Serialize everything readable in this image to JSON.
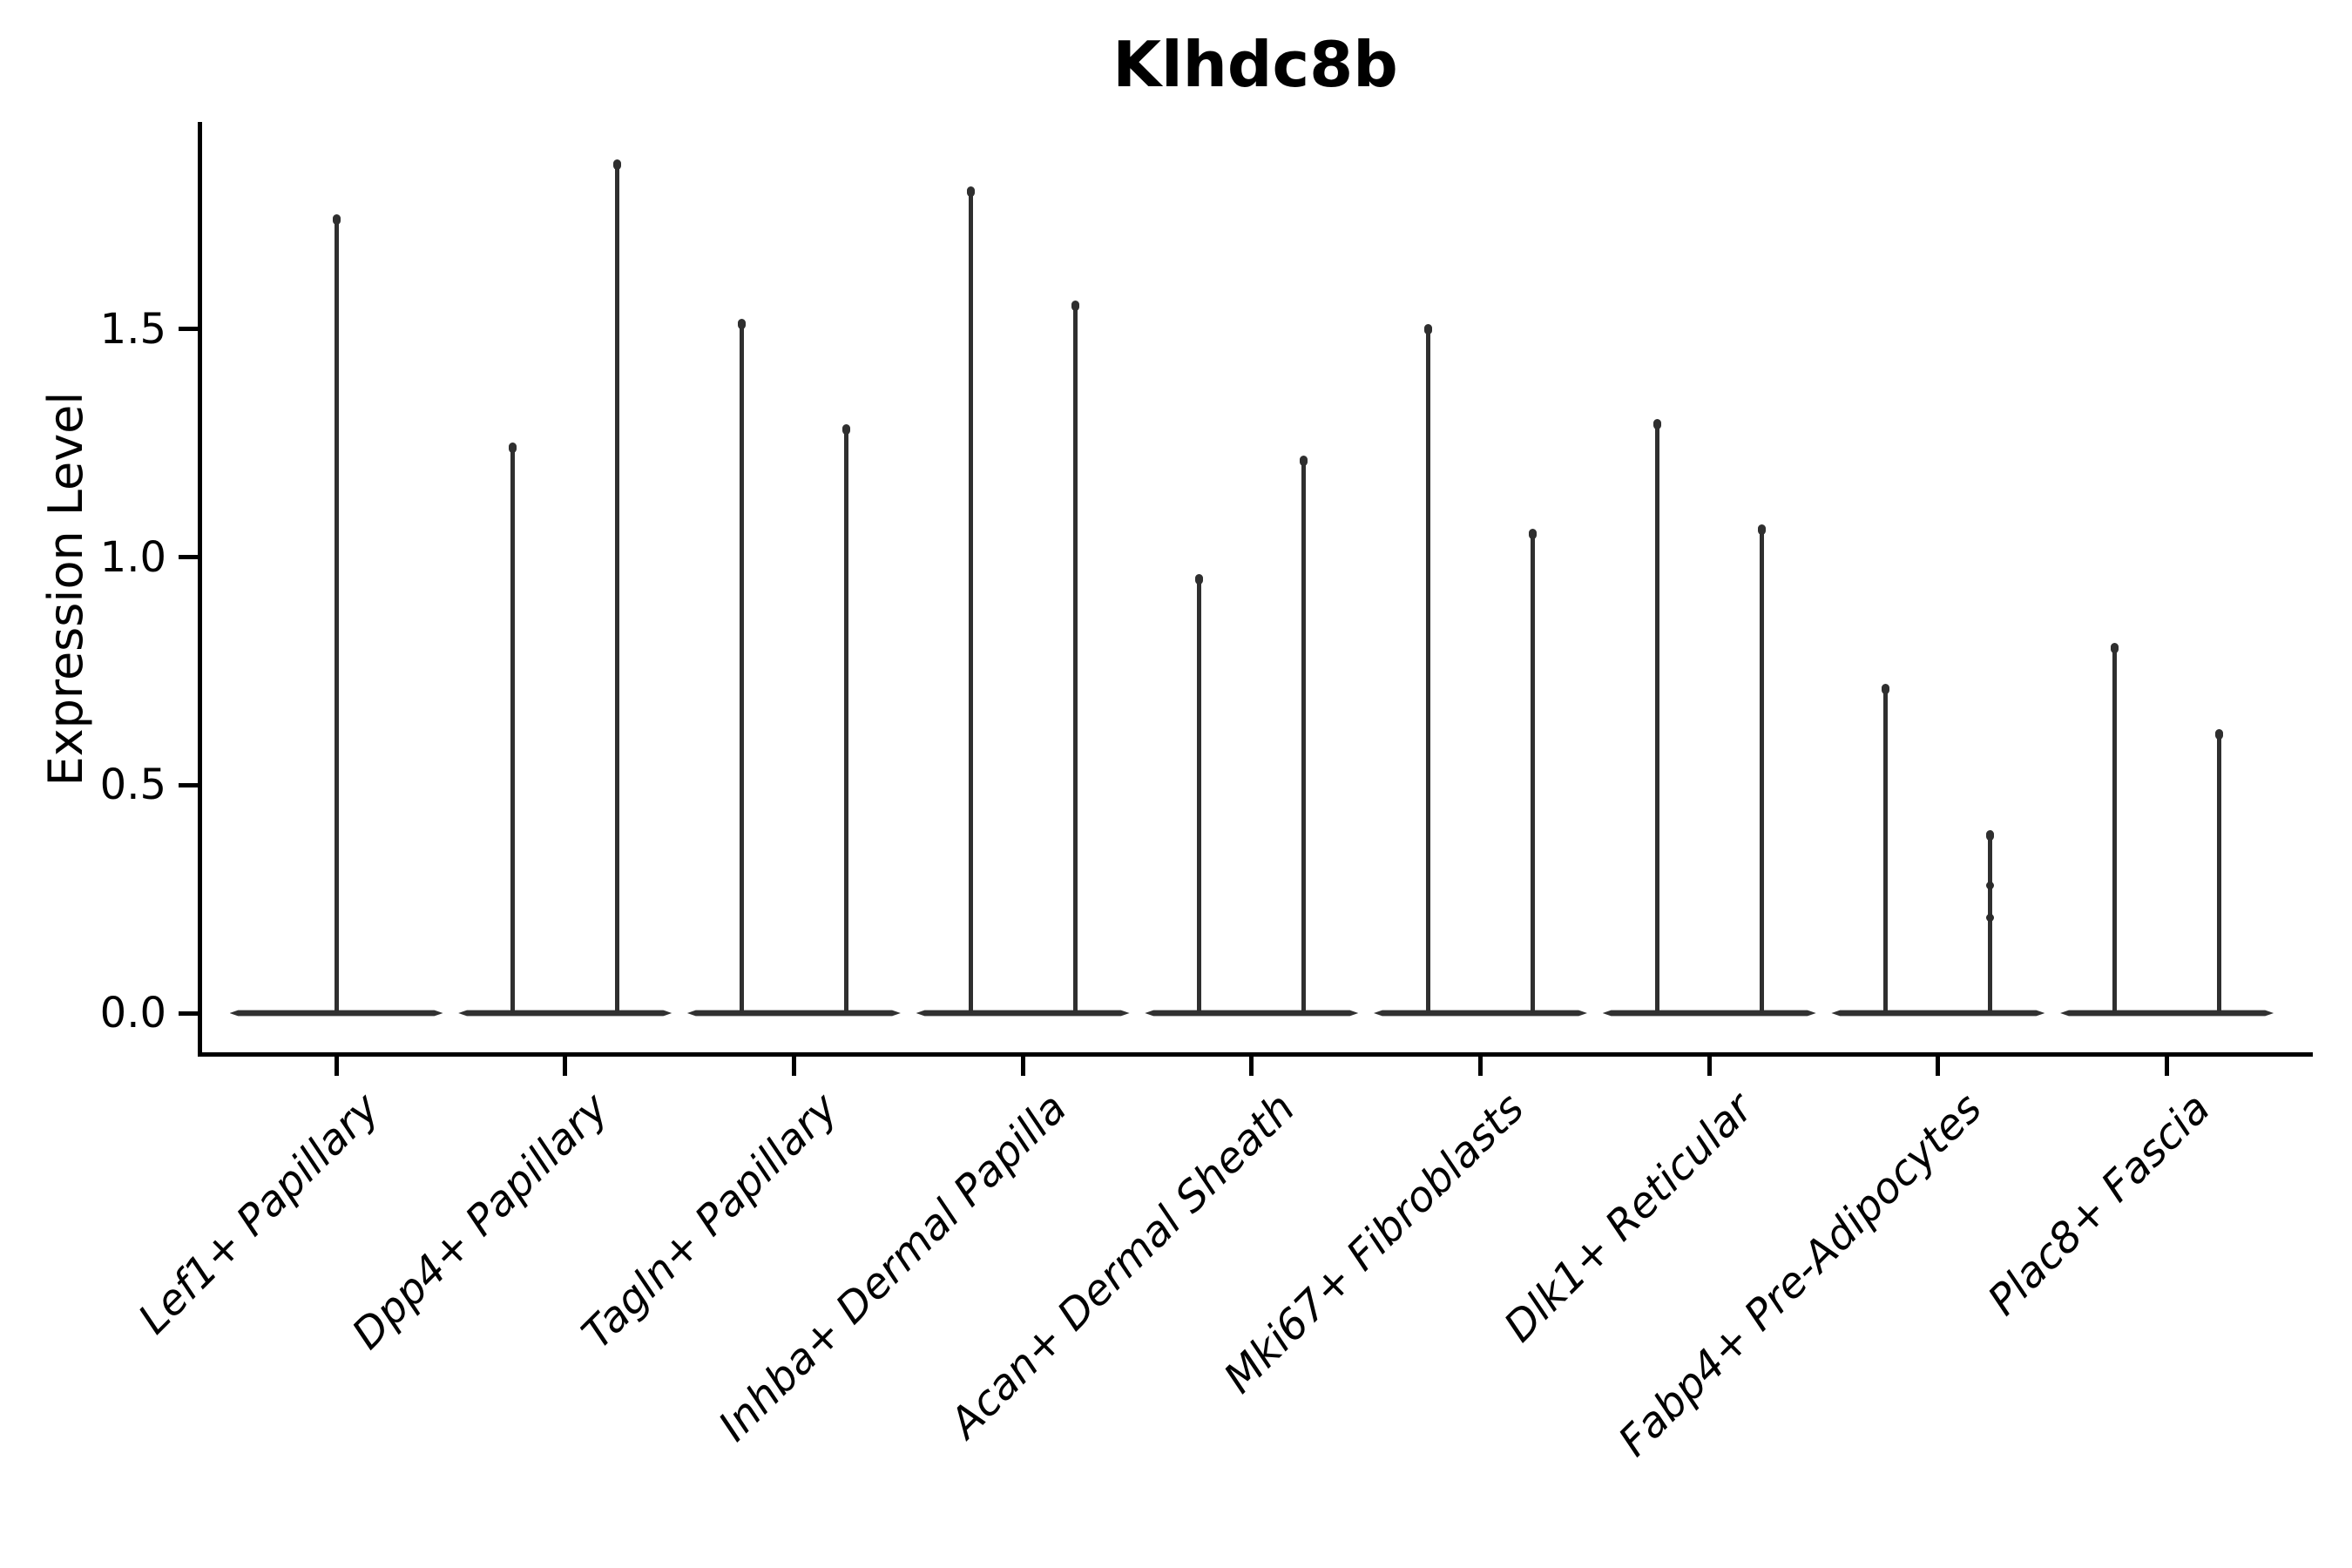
{
  "figure": {
    "background": "#ffffff",
    "stroke_color": "#2f2f2f",
    "axis_color": "#000000"
  },
  "chart_data": {
    "type": "violin",
    "title": "Klhdc8b",
    "xlabel": "",
    "ylabel": "Expression Level",
    "ylim": [
      -0.09,
      1.97
    ],
    "grid": false,
    "legend": "none",
    "y_ticks": [
      0.0,
      0.5,
      1.0,
      1.5
    ],
    "y_tick_labels": [
      "0.0",
      "0.5",
      "1.0",
      "1.5"
    ],
    "categories": [
      "Lef1+ Papillary",
      "Dpp4+ Papillary",
      "Tagln+ Papillary",
      "Inhba+ Dermal Papilla",
      "Acan+ Dermal Sheath",
      "Mki67+ Fibroblasts",
      "Dlk1+ Reticular",
      "Fabp4+ Pre-Adipocytes",
      "Plac8+ Fascia"
    ],
    "description": "Narrow violin plots; each violin is a flat wide base at expression 0 with a thin vertical spike up to its maximum expression value. Categories 2-9 contain two dodged violins; category 1 contains a single centered violin.",
    "violins": [
      {
        "category": "Lef1+ Papillary",
        "peaks": [
          1.75
        ],
        "dots": [
          []
        ]
      },
      {
        "category": "Dpp4+ Papillary",
        "peaks": [
          1.25,
          1.87
        ],
        "dots": [
          [],
          []
        ]
      },
      {
        "category": "Tagln+ Papillary",
        "peaks": [
          1.52,
          1.29
        ],
        "dots": [
          [],
          []
        ]
      },
      {
        "category": "Inhba+ Dermal Papilla",
        "peaks": [
          1.81,
          1.56
        ],
        "dots": [
          [],
          []
        ]
      },
      {
        "category": "Acan+ Dermal Sheath",
        "peaks": [
          0.96,
          1.22
        ],
        "dots": [
          [],
          []
        ]
      },
      {
        "category": "Mki67+ Fibroblasts",
        "peaks": [
          1.51,
          1.06
        ],
        "dots": [
          [],
          []
        ]
      },
      {
        "category": "Dlk1+ Reticular",
        "peaks": [
          1.3,
          1.07
        ],
        "dots": [
          [],
          []
        ]
      },
      {
        "category": "Fabp4+ Pre-Adipocytes",
        "peaks": [
          0.72,
          0.4
        ],
        "dots": [
          [],
          [
            0.28,
            0.21
          ]
        ]
      },
      {
        "category": "Plac8+ Fascia",
        "peaks": [
          0.81,
          0.62
        ],
        "dots": [
          [],
          []
        ]
      }
    ]
  }
}
